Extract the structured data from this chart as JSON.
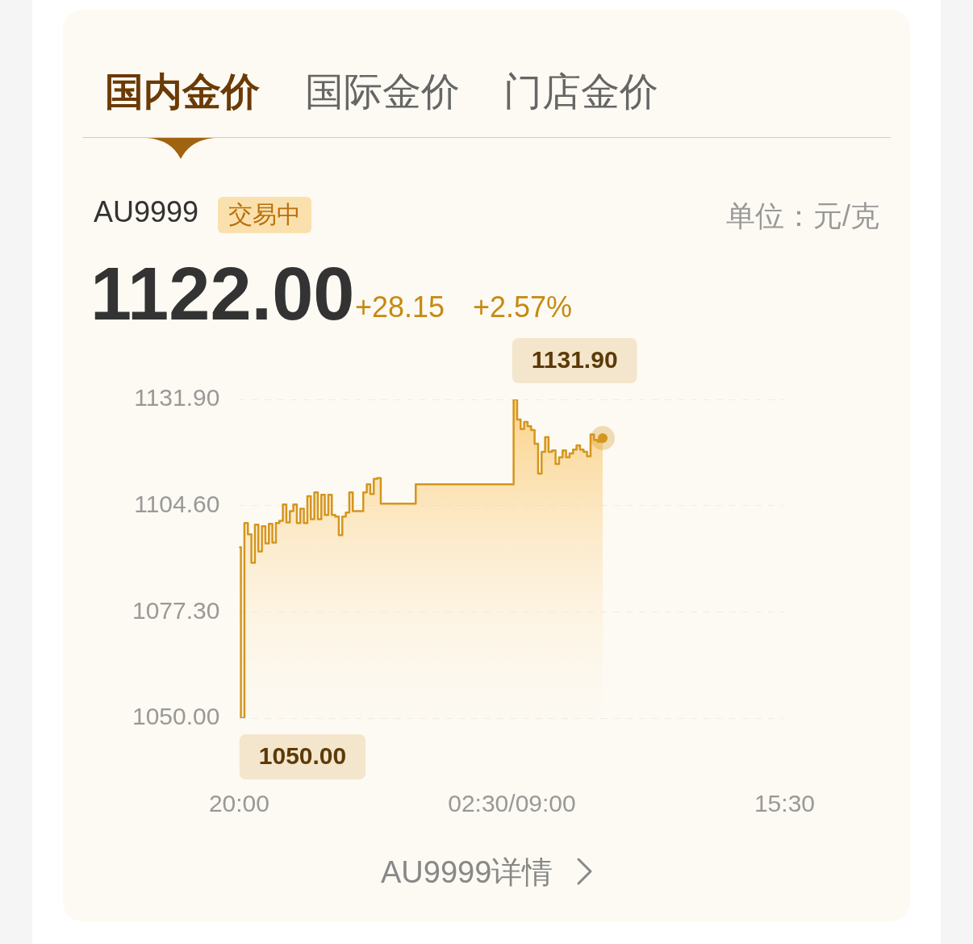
{
  "chart_data": {
    "type": "area",
    "title": "AU9999",
    "annotations": [
      "国内金价",
      "国际金价",
      "门店金价",
      "交易中",
      "单位：元/克",
      "1122.00",
      "+28.15",
      "+2.57%",
      "AU9999详情",
      "1131.90",
      "1050.00"
    ],
    "categories": [
      "20:00",
      null,
      null,
      null,
      null,
      null,
      null,
      null,
      null,
      null,
      null,
      null,
      null,
      null,
      null,
      null,
      null,
      null,
      null,
      null,
      null,
      null,
      null,
      null,
      null,
      null,
      null,
      null,
      null,
      null,
      null,
      null,
      null,
      null,
      null,
      null,
      null,
      null,
      null,
      null,
      null,
      null,
      null,
      null,
      null,
      null,
      null,
      null,
      null,
      null,
      null,
      null,
      null,
      null,
      null,
      null,
      null,
      null,
      null,
      null,
      null,
      null,
      null,
      null,
      null,
      null,
      null,
      null,
      null,
      null,
      null,
      null,
      null,
      null,
      null,
      null,
      null,
      null,
      "02:30/09:00",
      null,
      null,
      null,
      null,
      null,
      null,
      null,
      null,
      null,
      null,
      null,
      null,
      null,
      null,
      null,
      null,
      null,
      null,
      null,
      null,
      null,
      null,
      null,
      null,
      null,
      null,
      null,
      null,
      null,
      null,
      null,
      null,
      null,
      null,
      null,
      null,
      null,
      null,
      null,
      null,
      null,
      null,
      null,
      null,
      null,
      null,
      null,
      null,
      null,
      null,
      null,
      null,
      null,
      null,
      null,
      null,
      null,
      null,
      null,
      null,
      null,
      null,
      null,
      null,
      null,
      null,
      null,
      null,
      null,
      null,
      null,
      null,
      null,
      null,
      null,
      null,
      null,
      "15:30"
    ],
    "series": [
      {
        "color": "#d4961e",
        "values": [
          1093.9,
          1050.0,
          1100.1,
          1097.2,
          1089.9,
          1099.7,
          1092.8,
          1099.3,
          1094.9,
          1099.9,
          1095.1,
          1100.1,
          1100.7,
          1104.9,
          1100.3,
          1103.2,
          1104.9,
          1100.1,
          1103.8,
          1100.1,
          1107.0,
          1101.1,
          1108.0,
          1101.1,
          1107.4,
          1102.2,
          1107.4,
          1102.2,
          1101.8,
          1097.0,
          1101.8,
          1102.8,
          1108.0,
          1103.2,
          1103.2,
          1103.2,
          1108.0,
          1110.1,
          1107.6,
          1111.5,
          1111.7,
          1105.1,
          1105.1,
          1105.1,
          1105.1,
          1105.1,
          1105.1,
          1105.1,
          1105.1,
          1105.1,
          1105.1,
          1110.1,
          1110.1,
          1110.1,
          1110.1,
          1110.1,
          1110.1,
          1110.1,
          1110.1,
          1110.1,
          1110.1,
          1110.1,
          1110.1,
          1110.1,
          1110.1,
          1110.1,
          1110.1,
          1110.1,
          1110.1,
          1110.1,
          1110.1,
          1110.1,
          1110.1,
          1110.1,
          1110.1,
          1110.1,
          1110.1,
          1110.1,
          1110.1,
          1131.9,
          1126.7,
          1124.3,
          1126.1,
          1125.0,
          1124.0,
          1120.5,
          1112.8,
          1118.4,
          1122.2,
          1118.4,
          1118.8,
          1115.3,
          1117.0,
          1118.8,
          1117.0,
          1118.0,
          1119.0,
          1120.1,
          1119.0,
          1118.4,
          1117.3,
          1122.9,
          1121.5,
          1121.0,
          1122.0,
          null,
          null,
          null,
          null,
          null,
          null,
          null,
          null,
          null,
          null,
          null,
          null,
          null,
          null,
          null,
          null,
          null,
          null,
          null,
          null,
          null,
          null,
          null,
          null,
          null,
          null,
          null,
          null,
          null,
          null,
          null,
          null,
          null,
          null,
          null,
          null,
          null,
          null,
          null,
          null,
          null,
          null,
          null,
          null,
          null,
          null,
          null,
          null,
          null,
          null,
          null,
          null
        ]
      }
    ],
    "ylim": [
      1050,
      1131.9
    ],
    "yticks": [
      {
        "value": 1050,
        "label": "1050.00"
      },
      {
        "value": 1077.3,
        "label": "1077.30"
      },
      {
        "value": 1104.6,
        "label": "1104.60"
      },
      {
        "value": 1131.9,
        "label": "1131.90"
      }
    ],
    "grid": "y"
  }
}
